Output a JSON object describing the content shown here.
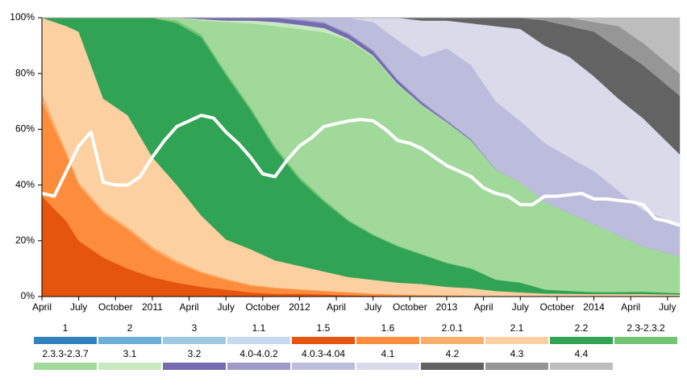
{
  "chart_data": {
    "type": "stacked-area",
    "x": [
      "2010-04",
      "2010-06",
      "2010-07",
      "2010-09",
      "2010-11",
      "2011-01",
      "2011-03",
      "2011-05",
      "2011-07",
      "2011-09",
      "2011-11",
      "2012-01",
      "2012-03",
      "2012-05",
      "2012-07",
      "2012-09",
      "2012-11",
      "2013-01",
      "2013-03",
      "2013-05",
      "2013-07",
      "2013-09",
      "2013-11",
      "2014-01",
      "2014-03",
      "2014-05",
      "2014-08"
    ],
    "xlim": [
      "2010-04",
      "2014-08"
    ],
    "xticks": [
      {
        "value": "2010-04",
        "label": "April"
      },
      {
        "value": "2010-07",
        "label": "July"
      },
      {
        "value": "2010-10",
        "label": "October"
      },
      {
        "value": "2011-01",
        "label": "2011"
      },
      {
        "value": "2011-04",
        "label": "April"
      },
      {
        "value": "2011-07",
        "label": "July"
      },
      {
        "value": "2011-10",
        "label": "October"
      },
      {
        "value": "2012-01",
        "label": "2012"
      },
      {
        "value": "2012-04",
        "label": "April"
      },
      {
        "value": "2012-07",
        "label": "July"
      },
      {
        "value": "2012-10",
        "label": "October"
      },
      {
        "value": "2013-01",
        "label": "2013"
      },
      {
        "value": "2013-04",
        "label": "April"
      },
      {
        "value": "2013-07",
        "label": "July"
      },
      {
        "value": "2013-10",
        "label": "October"
      },
      {
        "value": "2014-01",
        "label": "2014"
      },
      {
        "value": "2014-04",
        "label": "April"
      },
      {
        "value": "2014-07",
        "label": "July"
      }
    ],
    "ylim": [
      0,
      100
    ],
    "yticks": [
      {
        "value": 0,
        "label": "0%"
      },
      {
        "value": 20,
        "label": "20%"
      },
      {
        "value": 40,
        "label": "40%"
      },
      {
        "value": 60,
        "label": "60%"
      },
      {
        "value": 80,
        "label": "80%"
      },
      {
        "value": 100,
        "label": "100%"
      }
    ],
    "series": [
      {
        "name": "1",
        "color": "#3182bd",
        "values": [
          0,
          0,
          0,
          0,
          0,
          0,
          0,
          0,
          0,
          0,
          0,
          0,
          0,
          0,
          0,
          0,
          0,
          0,
          0,
          0,
          0,
          0,
          0,
          0,
          0,
          0,
          0
        ]
      },
      {
        "name": "2",
        "color": "#6baed6",
        "values": [
          0,
          0,
          0,
          0,
          0,
          0,
          0,
          0,
          0,
          0,
          0,
          0,
          0,
          0,
          0,
          0,
          0,
          0,
          0,
          0,
          0,
          0,
          0,
          0,
          0,
          0,
          0
        ]
      },
      {
        "name": "3",
        "color": "#9ecae1",
        "values": [
          0,
          0,
          0,
          0,
          0,
          0,
          0,
          0,
          0,
          0,
          0,
          0,
          0,
          0,
          0,
          0,
          0,
          0,
          0,
          0,
          0,
          0,
          0,
          0,
          0,
          0,
          0
        ]
      },
      {
        "name": "1.1",
        "color": "#c6dbef",
        "values": [
          0,
          0,
          0,
          0,
          0,
          0,
          0,
          0,
          0,
          0,
          0,
          0,
          0,
          0,
          0,
          0,
          0,
          0,
          0,
          0,
          0,
          0,
          0,
          0,
          0,
          0,
          0
        ]
      },
      {
        "name": "1.5",
        "color": "#e6550d",
        "values": [
          36,
          27,
          20,
          14,
          10,
          7,
          5,
          3.5,
          2.5,
          1.5,
          1,
          1,
          0.8,
          0.5,
          0.3,
          0.2,
          0.1,
          0.1,
          0.1,
          0,
          0,
          0,
          0,
          0,
          0,
          0,
          0
        ]
      },
      {
        "name": "1.6",
        "color": "#fd8d3c",
        "values": [
          34,
          24,
          20,
          16,
          14,
          10,
          7,
          5,
          3.5,
          2.5,
          2,
          1.5,
          1.2,
          1,
          0.7,
          0.5,
          0.4,
          0.3,
          0.2,
          0.1,
          0.1,
          0.1,
          0.1,
          0.1,
          0.1,
          0.1,
          0.1
        ]
      },
      {
        "name": "2.0.1",
        "color": "#fdae6b",
        "values": [
          3,
          1,
          1,
          1,
          1,
          1,
          1,
          0.5,
          0.5,
          0.3,
          0.3,
          0.2,
          0.1,
          0.1,
          0.1,
          0.1,
          0.1,
          0.1,
          0.1,
          0,
          0,
          0,
          0,
          0,
          0,
          0,
          0
        ]
      },
      {
        "name": "2.1",
        "color": "#fdd0a2",
        "values": [
          27,
          45,
          54,
          40,
          40,
          32,
          27,
          20,
          14,
          12.7,
          9.7,
          8.3,
          6.9,
          5.4,
          4.9,
          4.2,
          3.9,
          3,
          2.6,
          1.9,
          1.4,
          1,
          0.9,
          0.8,
          0.8,
          0.8,
          0.6
        ]
      },
      {
        "name": "2.2",
        "color": "#31a354",
        "values": [
          0,
          3,
          5,
          29,
          35,
          50,
          58,
          64,
          59,
          50,
          40,
          31,
          25,
          20,
          16,
          13,
          10.5,
          8.5,
          7,
          4,
          3.5,
          1.4,
          1,
          0.7,
          0.7,
          0.8,
          0.5
        ]
      },
      {
        "name": "2.3-2.3.2",
        "color": "#74c476",
        "values": [
          0,
          0,
          0,
          0,
          0,
          0,
          1,
          1,
          1,
          1,
          1,
          1,
          0.8,
          0.5,
          0.4,
          0.3,
          0.3,
          0.2,
          0.2,
          0.2,
          0.1,
          0.1,
          0.1,
          0.1,
          0.1,
          0.1,
          0.1
        ]
      },
      {
        "name": "2.3.3-2.3.7",
        "color": "#a1d99b",
        "values": [
          0,
          0,
          0,
          0,
          0,
          0,
          1,
          5,
          18,
          30,
          43,
          53,
          60,
          64.5,
          63.6,
          57.7,
          53.2,
          50.3,
          45.8,
          39.3,
          35.9,
          31.4,
          27.9,
          24.3,
          20.3,
          16.2,
          13.2
        ]
      },
      {
        "name": "3.1",
        "color": "#c7e9c0",
        "values": [
          0,
          0,
          0,
          0,
          0,
          0,
          0,
          0.5,
          0.5,
          1,
          1.5,
          1.5,
          1.5,
          0.5,
          0.5,
          0.3,
          0.2,
          0.1,
          0,
          0,
          0,
          0,
          0,
          0,
          0,
          0,
          0
        ]
      },
      {
        "name": "3.2",
        "color": "#756bb1",
        "values": [
          0,
          0,
          0,
          0,
          0,
          0,
          0,
          0.5,
          1,
          1,
          1.5,
          1.5,
          1.7,
          1.5,
          1.5,
          1.2,
          0.8,
          0.4,
          0.3,
          0.1,
          0,
          0,
          0,
          0,
          0,
          0,
          0
        ]
      },
      {
        "name": "4.0-4.0.2",
        "color": "#9e9ac8",
        "values": [
          0,
          0,
          0,
          0,
          0,
          0,
          0,
          0,
          0,
          0,
          0,
          0.5,
          0.5,
          0.5,
          0.5,
          0.5,
          0.5,
          0.3,
          0.2,
          0,
          0,
          0,
          0,
          0,
          0,
          0,
          0
        ]
      },
      {
        "name": "4.0.3-4.04",
        "color": "#bcbddc",
        "values": [
          0,
          0,
          0,
          0,
          0,
          0,
          0,
          0,
          0,
          0,
          0,
          0.5,
          1.5,
          5.5,
          10,
          14,
          16,
          25.7,
          26.5,
          24.4,
          22,
          21,
          20,
          19,
          16,
          13,
          11.5
        ]
      },
      {
        "name": "4.1",
        "color": "#dadaeb",
        "values": [
          0,
          0,
          0,
          0,
          0,
          0,
          0,
          0,
          0,
          0,
          0,
          0,
          0,
          0,
          1.5,
          8,
          13,
          10,
          15,
          27,
          33,
          35,
          36,
          34,
          33,
          33,
          25
        ]
      },
      {
        "name": "4.2",
        "color": "#636363",
        "values": [
          0,
          0,
          0,
          0,
          0,
          0,
          0,
          0,
          0,
          0,
          0,
          0,
          0,
          0,
          0,
          0,
          1,
          1,
          2,
          3,
          4,
          9,
          11,
          16,
          18,
          19,
          21
        ]
      },
      {
        "name": "4.3",
        "color": "#969696",
        "values": [
          0,
          0,
          0,
          0,
          0,
          0,
          0,
          0,
          0,
          0,
          0,
          0,
          0,
          0,
          0,
          0,
          0,
          0,
          0,
          0,
          0,
          1,
          3,
          3.5,
          8,
          8,
          8
        ]
      },
      {
        "name": "4.4",
        "color": "#bdbdbd",
        "values": [
          0,
          0,
          0,
          0,
          0,
          0,
          0,
          0,
          0,
          0,
          0,
          0,
          0,
          0,
          0,
          0,
          0,
          0,
          0,
          0,
          0,
          0,
          0,
          1.5,
          3,
          9,
          20
        ]
      }
    ],
    "overlay": {
      "color": "#ffffff",
      "x": [
        "2010-04",
        "2010-05",
        "2010-06",
        "2010-07",
        "2010-08",
        "2010-09",
        "2010-10",
        "2010-11",
        "2010-12",
        "2011-01",
        "2011-02",
        "2011-03",
        "2011-04",
        "2011-05",
        "2011-06",
        "2011-07",
        "2011-08",
        "2011-09",
        "2011-10",
        "2011-11",
        "2011-12",
        "2012-01",
        "2012-02",
        "2012-03",
        "2012-04",
        "2012-05",
        "2012-06",
        "2012-07",
        "2012-08",
        "2012-09",
        "2012-10",
        "2012-11",
        "2012-12",
        "2013-01",
        "2013-02",
        "2013-03",
        "2013-04",
        "2013-05",
        "2013-06",
        "2013-07",
        "2013-08",
        "2013-09",
        "2013-10",
        "2013-11",
        "2013-12",
        "2014-01",
        "2014-02",
        "2014-03",
        "2014-04",
        "2014-05",
        "2014-06",
        "2014-07",
        "2014-08"
      ],
      "values": [
        37,
        36,
        45,
        54,
        59,
        41,
        40,
        40,
        43,
        50,
        56,
        61,
        63,
        65,
        64,
        59,
        55,
        50,
        44,
        43,
        49,
        54,
        57,
        61,
        62,
        63,
        63.5,
        63,
        60,
        56,
        55,
        53,
        50,
        47,
        45,
        43,
        39,
        37,
        36,
        33,
        33,
        36,
        36,
        36.5,
        37,
        35,
        35,
        34.5,
        34,
        33,
        28,
        27,
        25.5
      ]
    }
  }
}
